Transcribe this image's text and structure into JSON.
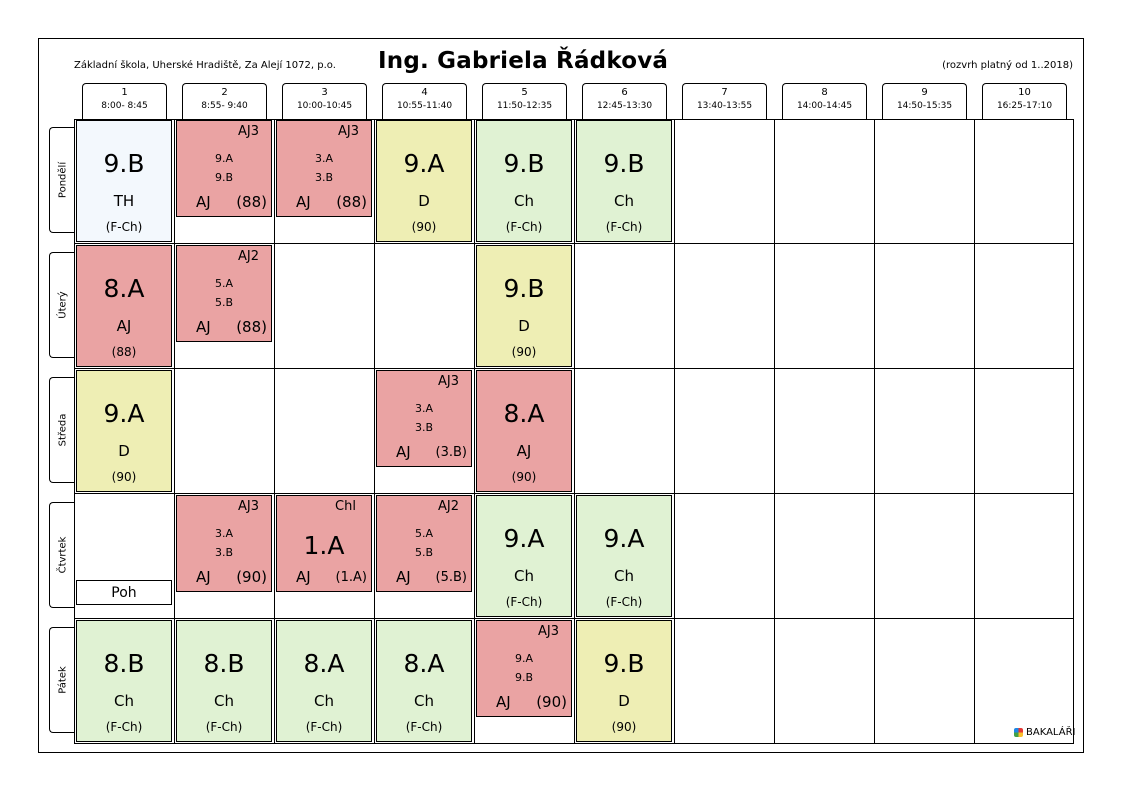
{
  "header": {
    "school": "Základní škola, Uherské Hradiště, Za Alejí 1072, p.o.",
    "teacher": "Ing. Gabriela Řádková",
    "valid": "(rozvrh platný od 1..2018)"
  },
  "periods": [
    {
      "num": "1",
      "time": "8:00- 8:45"
    },
    {
      "num": "2",
      "time": "8:55- 9:40"
    },
    {
      "num": "3",
      "time": "10:00-10:45"
    },
    {
      "num": "4",
      "time": "10:55-11:40"
    },
    {
      "num": "5",
      "time": "11:50-12:35"
    },
    {
      "num": "6",
      "time": "12:45-13:30"
    },
    {
      "num": "7",
      "time": "13:40-13:55"
    },
    {
      "num": "8",
      "time": "14:00-14:45"
    },
    {
      "num": "9",
      "time": "14:50-15:35"
    },
    {
      "num": "10",
      "time": "16:25-17:10"
    }
  ],
  "days": [
    "Pondělí",
    "Úterý",
    "Středa",
    "Čtvrtek",
    "Pátek"
  ],
  "lessons": {
    "mon": {
      "p1": {
        "class": "9.B",
        "subject": "TH",
        "room": "(F-Ch)"
      },
      "p2": {
        "group": "AJ3",
        "class1": "9.A",
        "class2": "9.B",
        "subject": "AJ",
        "room": "(88)"
      },
      "p3": {
        "group": "AJ3",
        "class1": "3.A",
        "class2": "3.B",
        "subject": "AJ",
        "room": "(88)"
      },
      "p4": {
        "class": "9.A",
        "subject": "D",
        "room": "(90)"
      },
      "p5": {
        "class": "9.B",
        "subject": "Ch",
        "room": "(F-Ch)"
      },
      "p6": {
        "class": "9.B",
        "subject": "Ch",
        "room": "(F-Ch)"
      }
    },
    "tue": {
      "p1": {
        "class": "8.A",
        "subject": "AJ",
        "room": "(88)"
      },
      "p2": {
        "group": "AJ2",
        "class1": "5.A",
        "class2": "5.B",
        "subject": "AJ",
        "room": "(88)"
      },
      "p5": {
        "class": "9.B",
        "subject": "D",
        "room": "(90)"
      }
    },
    "wed": {
      "p1": {
        "class": "9.A",
        "subject": "D",
        "room": "(90)"
      },
      "p4": {
        "group": "AJ3",
        "class1": "3.A",
        "class2": "3.B",
        "subject": "AJ",
        "room": "(3.B)"
      },
      "p5": {
        "class": "8.A",
        "subject": "AJ",
        "room": "(90)"
      }
    },
    "thu": {
      "p1": {
        "subject": "Poh"
      },
      "p2": {
        "group": "AJ3",
        "class1": "3.A",
        "class2": "3.B",
        "subject": "AJ",
        "room": "(90)"
      },
      "p3": {
        "group": "Chl",
        "class": "1.A",
        "subject": "AJ",
        "room": "(1.A)"
      },
      "p4": {
        "group": "AJ2",
        "class1": "5.A",
        "class2": "5.B",
        "subject": "AJ",
        "room": "(5.B)"
      },
      "p5": {
        "class": "9.A",
        "subject": "Ch",
        "room": "(F-Ch)"
      },
      "p6": {
        "class": "9.A",
        "subject": "Ch",
        "room": "(F-Ch)"
      }
    },
    "fri": {
      "p1": {
        "class": "8.B",
        "subject": "Ch",
        "room": "(F-Ch)"
      },
      "p2": {
        "class": "8.B",
        "subject": "Ch",
        "room": "(F-Ch)"
      },
      "p3": {
        "class": "8.A",
        "subject": "Ch",
        "room": "(F-Ch)"
      },
      "p4": {
        "class": "8.A",
        "subject": "Ch",
        "room": "(F-Ch)"
      },
      "p5": {
        "group": "AJ3",
        "class1": "9.A",
        "class2": "9.B",
        "subject": "AJ",
        "room": "(90)"
      },
      "p6": {
        "class": "9.B",
        "subject": "D",
        "room": "(90)"
      }
    }
  },
  "logo": "BAKALÁŘI",
  "colors": {
    "white_cell": "#f3f8fd",
    "red_cell": "#eaa3a3",
    "yellow_cell": "#eeeeb4",
    "green_cell": "#e0f2d3"
  }
}
